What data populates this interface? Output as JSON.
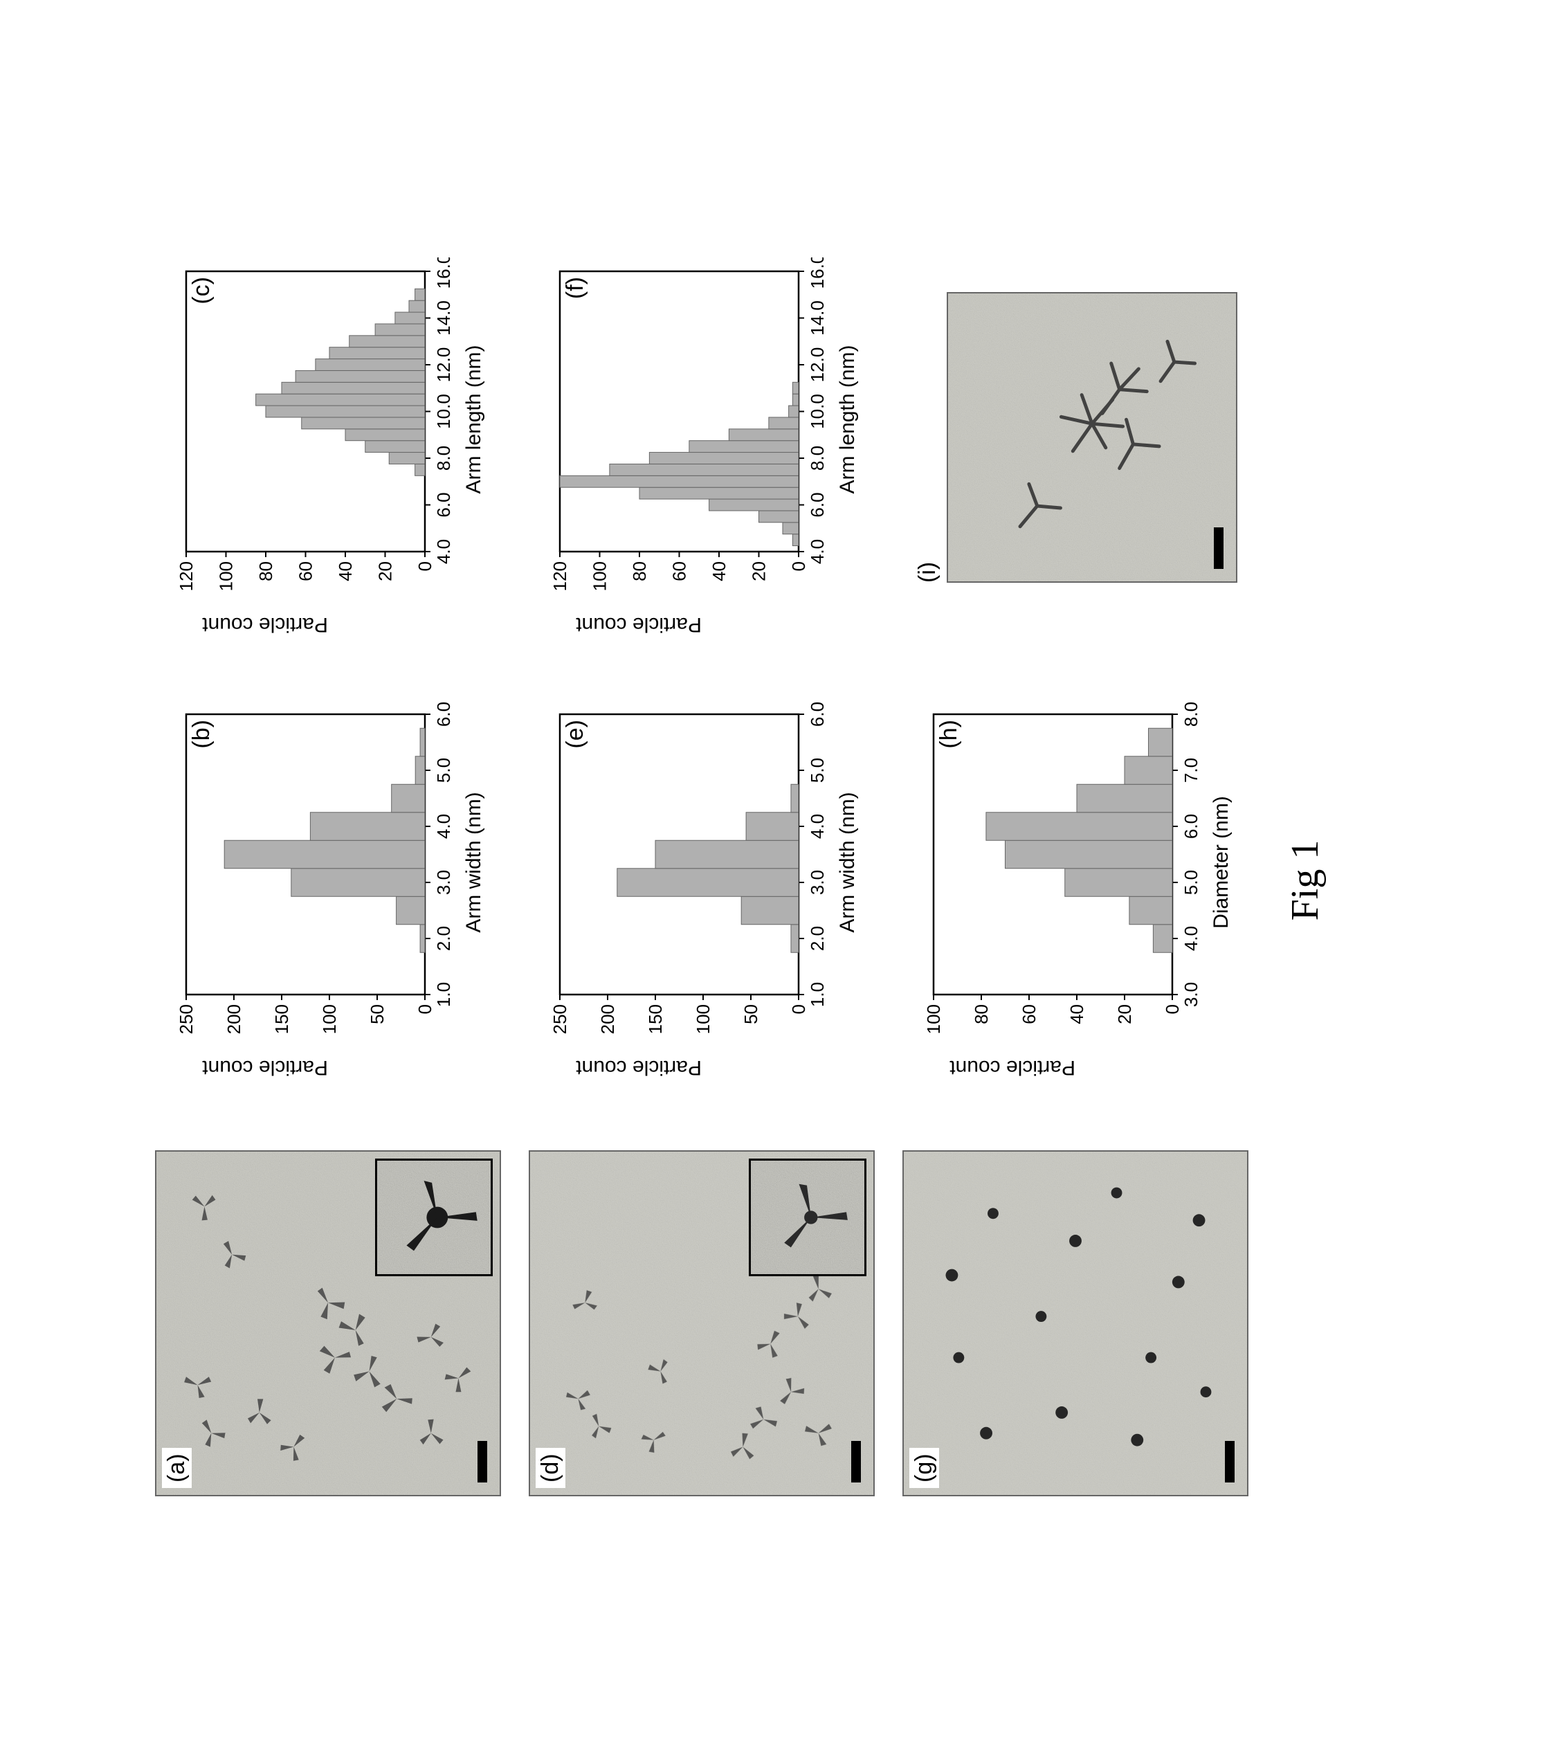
{
  "figure_caption": "Fig 1",
  "colors": {
    "background": "#ffffff",
    "bar_fill": "#b0b0b0",
    "bar_stroke": "#666666",
    "axis": "#000000",
    "tem_bg_light": "#c8c8c2",
    "tem_bg_dark": "#a8a8a0",
    "particle": "#3a3a3a"
  },
  "typography": {
    "axis_label_fontsize": 30,
    "tick_fontsize": 26,
    "panel_letter_fontsize": 34,
    "caption_fontsize": 56,
    "font_family_sans": "Arial",
    "font_family_serif": "Times New Roman"
  },
  "panels": {
    "a": {
      "letter": "(a)",
      "type": "tem_image",
      "has_inset": true,
      "has_scalebar": true,
      "particle_shape": "tripod"
    },
    "b": {
      "letter": "(b)",
      "type": "histogram",
      "xlabel": "Arm width (nm)",
      "ylabel": "Particle count",
      "xlim": [
        1.0,
        6.0
      ],
      "xticks": [
        1.0,
        2.0,
        3.0,
        4.0,
        5.0,
        6.0
      ],
      "xtick_labels": [
        "1.0",
        "2.0",
        "3.0",
        "4.0",
        "5.0",
        "6.0"
      ],
      "ylim": [
        0,
        250
      ],
      "yticks": [
        0,
        50,
        100,
        150,
        200,
        250
      ],
      "bar_width": 0.5,
      "bins": [
        2.0,
        2.5,
        3.0,
        3.5,
        4.0,
        4.5,
        5.0,
        5.5
      ],
      "values": [
        5,
        30,
        140,
        210,
        120,
        35,
        10,
        5
      ]
    },
    "c": {
      "letter": "(c)",
      "type": "histogram",
      "xlabel": "Arm length (nm)",
      "ylabel": "Particle count",
      "xlim": [
        4.0,
        16.0
      ],
      "xticks": [
        4.0,
        6.0,
        8.0,
        10.0,
        12.0,
        14.0,
        16.0
      ],
      "xtick_labels": [
        "4.0",
        "6.0",
        "8.0",
        "10.0",
        "12.0",
        "14.0",
        "16.0"
      ],
      "ylim": [
        0,
        120
      ],
      "yticks": [
        0,
        20,
        40,
        60,
        80,
        100,
        120
      ],
      "bar_width": 0.5,
      "bins": [
        7.5,
        8.0,
        8.5,
        9.0,
        9.5,
        10.0,
        10.5,
        11.0,
        11.5,
        12.0,
        12.5,
        13.0,
        13.5,
        14.0,
        14.5,
        15.0
      ],
      "values": [
        5,
        18,
        30,
        40,
        62,
        80,
        85,
        72,
        65,
        55,
        48,
        38,
        25,
        15,
        8,
        5
      ]
    },
    "d": {
      "letter": "(d)",
      "type": "tem_image",
      "has_inset": true,
      "has_scalebar": true,
      "particle_shape": "tripod"
    },
    "e": {
      "letter": "(e)",
      "type": "histogram",
      "xlabel": "Arm width (nm)",
      "ylabel": "Particle count",
      "xlim": [
        1.0,
        6.0
      ],
      "xticks": [
        1.0,
        2.0,
        3.0,
        4.0,
        5.0,
        6.0
      ],
      "xtick_labels": [
        "1.0",
        "2.0",
        "3.0",
        "4.0",
        "5.0",
        "6.0"
      ],
      "ylim": [
        0,
        250
      ],
      "yticks": [
        0,
        50,
        100,
        150,
        200,
        250
      ],
      "bar_width": 0.5,
      "bins": [
        2.0,
        2.5,
        3.0,
        3.5,
        4.0,
        4.5
      ],
      "values": [
        8,
        60,
        190,
        150,
        55,
        8
      ]
    },
    "f": {
      "letter": "(f)",
      "type": "histogram",
      "xlabel": "Arm length (nm)",
      "ylabel": "Particle count",
      "xlim": [
        4.0,
        16.0
      ],
      "xticks": [
        4.0,
        6.0,
        8.0,
        10.0,
        12.0,
        14.0,
        16.0
      ],
      "xtick_labels": [
        "4.0",
        "6.0",
        "8.0",
        "10.0",
        "12.0",
        "14.0",
        "16.0"
      ],
      "ylim": [
        0,
        120
      ],
      "yticks": [
        0,
        20,
        40,
        60,
        80,
        100,
        120
      ],
      "bar_width": 0.5,
      "bins": [
        4.5,
        5.0,
        5.5,
        6.0,
        6.5,
        7.0,
        7.5,
        8.0,
        8.5,
        9.0,
        9.5,
        10.0,
        10.5,
        11.0
      ],
      "values": [
        3,
        8,
        20,
        45,
        80,
        120,
        95,
        75,
        55,
        35,
        15,
        5,
        3,
        3
      ]
    },
    "g": {
      "letter": "(g)",
      "type": "tem_image",
      "has_inset": false,
      "has_scalebar": true,
      "particle_shape": "dot"
    },
    "h": {
      "letter": "(h)",
      "type": "histogram",
      "xlabel": "Diameter (nm)",
      "ylabel": "Particle count",
      "xlim": [
        3.0,
        8.0
      ],
      "xticks": [
        3.0,
        4.0,
        5.0,
        6.0,
        7.0,
        8.0
      ],
      "xtick_labels": [
        "3.0",
        "4.0",
        "5.0",
        "6.0",
        "7.0",
        "8.0"
      ],
      "ylim": [
        0,
        100
      ],
      "yticks": [
        0,
        20,
        40,
        60,
        80,
        100
      ],
      "bar_width": 0.5,
      "bins": [
        4.0,
        4.5,
        5.0,
        5.5,
        6.0,
        6.5,
        7.0,
        7.5
      ],
      "values": [
        8,
        18,
        45,
        70,
        78,
        40,
        20,
        10
      ]
    },
    "i": {
      "letter": "(i)",
      "type": "tem_image",
      "has_inset": false,
      "has_scalebar": true,
      "particle_shape": "multipod"
    }
  }
}
